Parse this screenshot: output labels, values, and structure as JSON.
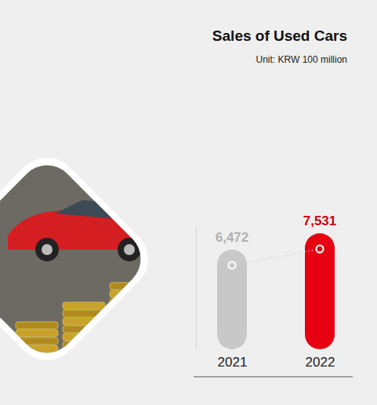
{
  "chart_data": {
    "type": "bar",
    "title": "Sales of Used Cars",
    "subtitle": "Unit: KRW 100 million",
    "categories": [
      "2021",
      "2022"
    ],
    "values": [
      6472,
      7531
    ],
    "value_labels": [
      "6,472",
      "7,531"
    ],
    "colors": [
      "#c8c8c8",
      "#e60012"
    ],
    "ylim": [
      0,
      8000
    ],
    "data_labels": true,
    "tick_labels": "x",
    "marker": "circle"
  }
}
